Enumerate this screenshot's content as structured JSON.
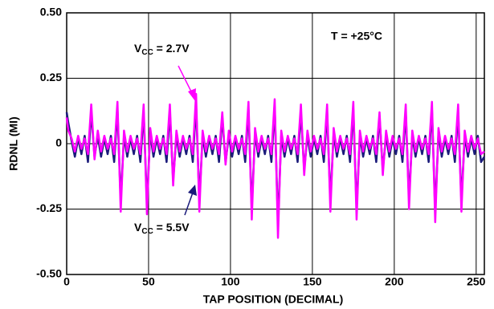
{
  "chart_data": {
    "type": "line",
    "y_label": "RDNL (MI)",
    "x_label": "TAP POSITION (DECIMAL)",
    "annotations": [
      {
        "main": "V",
        "sub": "CC",
        "rest": " = 2.7V"
      },
      {
        "main": "V",
        "sub": "CC",
        "rest": " = 5.5V"
      },
      {
        "text": "T = +25°C"
      }
    ],
    "x": [
      0,
      1,
      3,
      5,
      7,
      9,
      11,
      13,
      15,
      17,
      19,
      21,
      23,
      25,
      27,
      29,
      31,
      33,
      35,
      37,
      39,
      41,
      43,
      45,
      47,
      49,
      51,
      53,
      55,
      57,
      59,
      61,
      63,
      65,
      67,
      69,
      71,
      73,
      75,
      77,
      79,
      81,
      83,
      85,
      87,
      89,
      91,
      93,
      95,
      97,
      99,
      101,
      103,
      105,
      107,
      109,
      111,
      113,
      115,
      117,
      119,
      121,
      123,
      125,
      127,
      129,
      131,
      133,
      135,
      137,
      139,
      141,
      143,
      145,
      147,
      149,
      151,
      153,
      155,
      157,
      159,
      161,
      163,
      165,
      167,
      169,
      171,
      173,
      175,
      177,
      179,
      181,
      183,
      185,
      187,
      189,
      191,
      193,
      195,
      197,
      199,
      201,
      203,
      205,
      207,
      209,
      211,
      213,
      215,
      217,
      219,
      221,
      223,
      225,
      227,
      229,
      231,
      233,
      235,
      237,
      239,
      241,
      243,
      245,
      247,
      249,
      251,
      253,
      255
    ],
    "series": [
      {
        "color": "#ff00ff",
        "values": [
          0.1,
          0.05,
          0.02,
          -0.03,
          0.03,
          -0.02,
          0.02,
          -0.04,
          0.15,
          -0.06,
          0.05,
          -0.03,
          0.03,
          -0.02,
          0.02,
          -0.04,
          0.16,
          -0.26,
          0.05,
          -0.03,
          0.03,
          -0.02,
          0.02,
          -0.04,
          0.15,
          -0.27,
          0.06,
          -0.03,
          0.03,
          -0.02,
          0.02,
          -0.04,
          0.15,
          -0.16,
          0.05,
          -0.03,
          0.03,
          -0.02,
          0.02,
          -0.04,
          0.19,
          -0.26,
          0.05,
          -0.03,
          0.03,
          -0.02,
          0.02,
          -0.04,
          0.12,
          -0.08,
          0.05,
          -0.03,
          0.03,
          -0.02,
          0.02,
          -0.04,
          0.16,
          -0.29,
          0.06,
          -0.03,
          0.03,
          -0.02,
          0.02,
          -0.04,
          0.17,
          -0.36,
          0.05,
          -0.03,
          0.03,
          -0.02,
          0.02,
          -0.04,
          0.15,
          -0.12,
          0.05,
          -0.03,
          0.03,
          -0.02,
          0.02,
          -0.04,
          0.15,
          -0.26,
          0.06,
          -0.03,
          0.03,
          -0.02,
          0.02,
          -0.04,
          0.16,
          -0.29,
          0.05,
          -0.03,
          0.03,
          -0.02,
          0.02,
          -0.04,
          0.12,
          -0.12,
          0.05,
          -0.03,
          0.03,
          -0.02,
          0.02,
          -0.04,
          0.15,
          -0.25,
          0.05,
          -0.03,
          0.03,
          -0.02,
          0.02,
          -0.04,
          0.16,
          -0.3,
          0.06,
          -0.03,
          0.03,
          -0.02,
          0.02,
          -0.04,
          0.15,
          -0.26,
          0.05,
          -0.03,
          0.03,
          -0.02,
          0.02,
          -0.04,
          -0.03
        ]
      },
      {
        "color": "#1a1a7a",
        "values": [
          0.12,
          0.08,
          0.01,
          -0.05,
          0.02,
          -0.04,
          0.03,
          -0.07,
          0.12,
          -0.05,
          0.03,
          -0.05,
          0.02,
          -0.04,
          0.03,
          -0.07,
          0.13,
          -0.22,
          0.03,
          -0.05,
          0.02,
          -0.04,
          0.03,
          -0.07,
          0.12,
          -0.23,
          0.04,
          -0.05,
          0.02,
          -0.04,
          0.03,
          -0.07,
          0.12,
          -0.14,
          0.03,
          -0.05,
          0.02,
          -0.04,
          0.03,
          -0.07,
          0.15,
          -0.22,
          0.03,
          -0.05,
          0.02,
          -0.04,
          0.03,
          -0.07,
          0.1,
          -0.07,
          0.03,
          -0.05,
          0.02,
          -0.04,
          0.03,
          -0.07,
          0.13,
          -0.25,
          0.04,
          -0.05,
          0.02,
          -0.04,
          0.03,
          -0.07,
          0.14,
          -0.31,
          0.03,
          -0.05,
          0.02,
          -0.04,
          0.03,
          -0.07,
          0.12,
          -0.1,
          0.03,
          -0.05,
          0.02,
          -0.04,
          0.03,
          -0.07,
          0.12,
          -0.22,
          0.04,
          -0.05,
          0.02,
          -0.04,
          0.03,
          -0.07,
          0.13,
          -0.25,
          0.03,
          -0.05,
          0.02,
          -0.04,
          0.03,
          -0.07,
          0.1,
          -0.1,
          0.03,
          -0.05,
          0.02,
          -0.04,
          0.03,
          -0.07,
          0.12,
          -0.21,
          0.03,
          -0.05,
          0.02,
          -0.04,
          0.03,
          -0.07,
          0.13,
          -0.26,
          0.04,
          -0.05,
          0.02,
          -0.04,
          0.03,
          -0.07,
          0.12,
          -0.22,
          0.03,
          -0.05,
          0.02,
          -0.04,
          0.03,
          -0.07,
          -0.05
        ]
      }
    ],
    "xlim": [
      0,
      255
    ],
    "xticks": [
      0,
      50,
      100,
      150,
      200,
      250
    ],
    "ylim": [
      -0.5,
      0.5
    ],
    "yticks": [
      {
        "value": -0.5,
        "label": "-0.50"
      },
      -0.25,
      0,
      0.25,
      {
        "value": 0.5,
        "label": "0.50"
      }
    ],
    "grid": true
  }
}
